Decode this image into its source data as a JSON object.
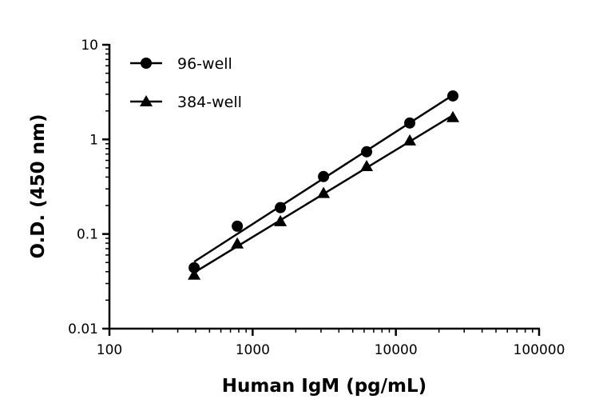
{
  "chart_data": {
    "type": "line",
    "title": "",
    "xlabel": "Human IgM (pg/mL)",
    "ylabel": "O.D. (450 nm)",
    "xscale": "log",
    "yscale": "log",
    "xlim": [
      100,
      100000
    ],
    "ylim": [
      0.01,
      10
    ],
    "x_ticks": [
      "100",
      "1000",
      "10000",
      "100000"
    ],
    "y_ticks": [
      "0.01",
      "0.1",
      "1",
      "10"
    ],
    "grid": false,
    "legend_position": "top-left",
    "x": [
      390.6,
      781.25,
      1562.5,
      3125,
      6250,
      12500,
      25000
    ],
    "series": [
      {
        "name": "96-well",
        "marker": "circle",
        "values": [
          0.044,
          0.121,
          0.19,
          0.405,
          0.74,
          1.49,
          2.88
        ]
      },
      {
        "name": "384-well",
        "marker": "triangle",
        "values": [
          0.037,
          0.079,
          0.136,
          0.27,
          0.52,
          0.97,
          1.71
        ]
      }
    ],
    "fit": "linear fit lines (log-log)",
    "colors": {
      "series": "#000000"
    }
  }
}
